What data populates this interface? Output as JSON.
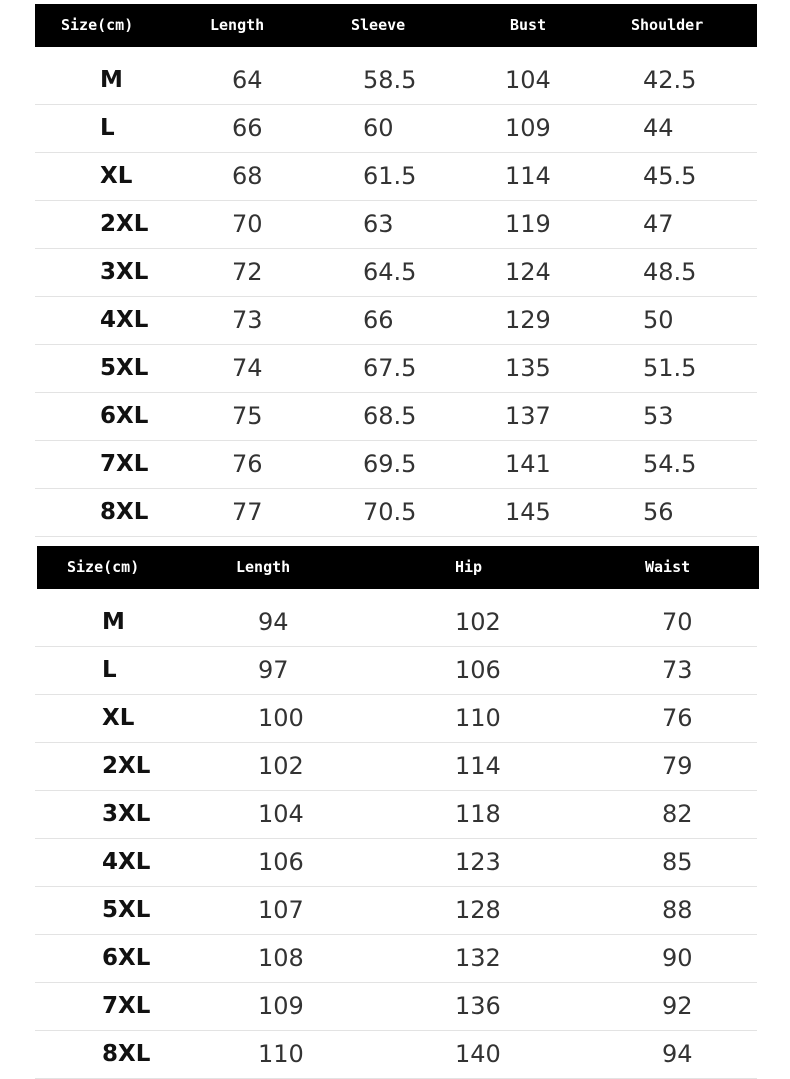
{
  "top_table": {
    "headers": [
      "Size(cm)",
      "Length",
      "Sleeve",
      "Bust",
      "Shoulder"
    ],
    "rows": [
      [
        "M",
        "64",
        "58.5",
        "104",
        "42.5"
      ],
      [
        "L",
        "66",
        "60",
        "109",
        "44"
      ],
      [
        "XL",
        "68",
        "61.5",
        "114",
        "45.5"
      ],
      [
        "2XL",
        "70",
        "63",
        "119",
        "47"
      ],
      [
        "3XL",
        "72",
        "64.5",
        "124",
        "48.5"
      ],
      [
        "4XL",
        "73",
        "66",
        "129",
        "50"
      ],
      [
        "5XL",
        "74",
        "67.5",
        "135",
        "51.5"
      ],
      [
        "6XL",
        "75",
        "68.5",
        "137",
        "53"
      ],
      [
        "7XL",
        "76",
        "69.5",
        "141",
        "54.5"
      ],
      [
        "8XL",
        "77",
        "70.5",
        "145",
        "56"
      ]
    ]
  },
  "bottom_table": {
    "headers": [
      "Size(cm)",
      "Length",
      "Hip",
      "Waist"
    ],
    "rows": [
      [
        "M",
        "94",
        "102",
        "70"
      ],
      [
        "L",
        "97",
        "106",
        "73"
      ],
      [
        "XL",
        "100",
        "110",
        "76"
      ],
      [
        "2XL",
        "102",
        "114",
        "79"
      ],
      [
        "3XL",
        "104",
        "118",
        "82"
      ],
      [
        "4XL",
        "106",
        "123",
        "85"
      ],
      [
        "5XL",
        "107",
        "128",
        "88"
      ],
      [
        "6XL",
        "108",
        "132",
        "90"
      ],
      [
        "7XL",
        "109",
        "136",
        "92"
      ],
      [
        "8XL",
        "110",
        "140",
        "94"
      ]
    ]
  }
}
